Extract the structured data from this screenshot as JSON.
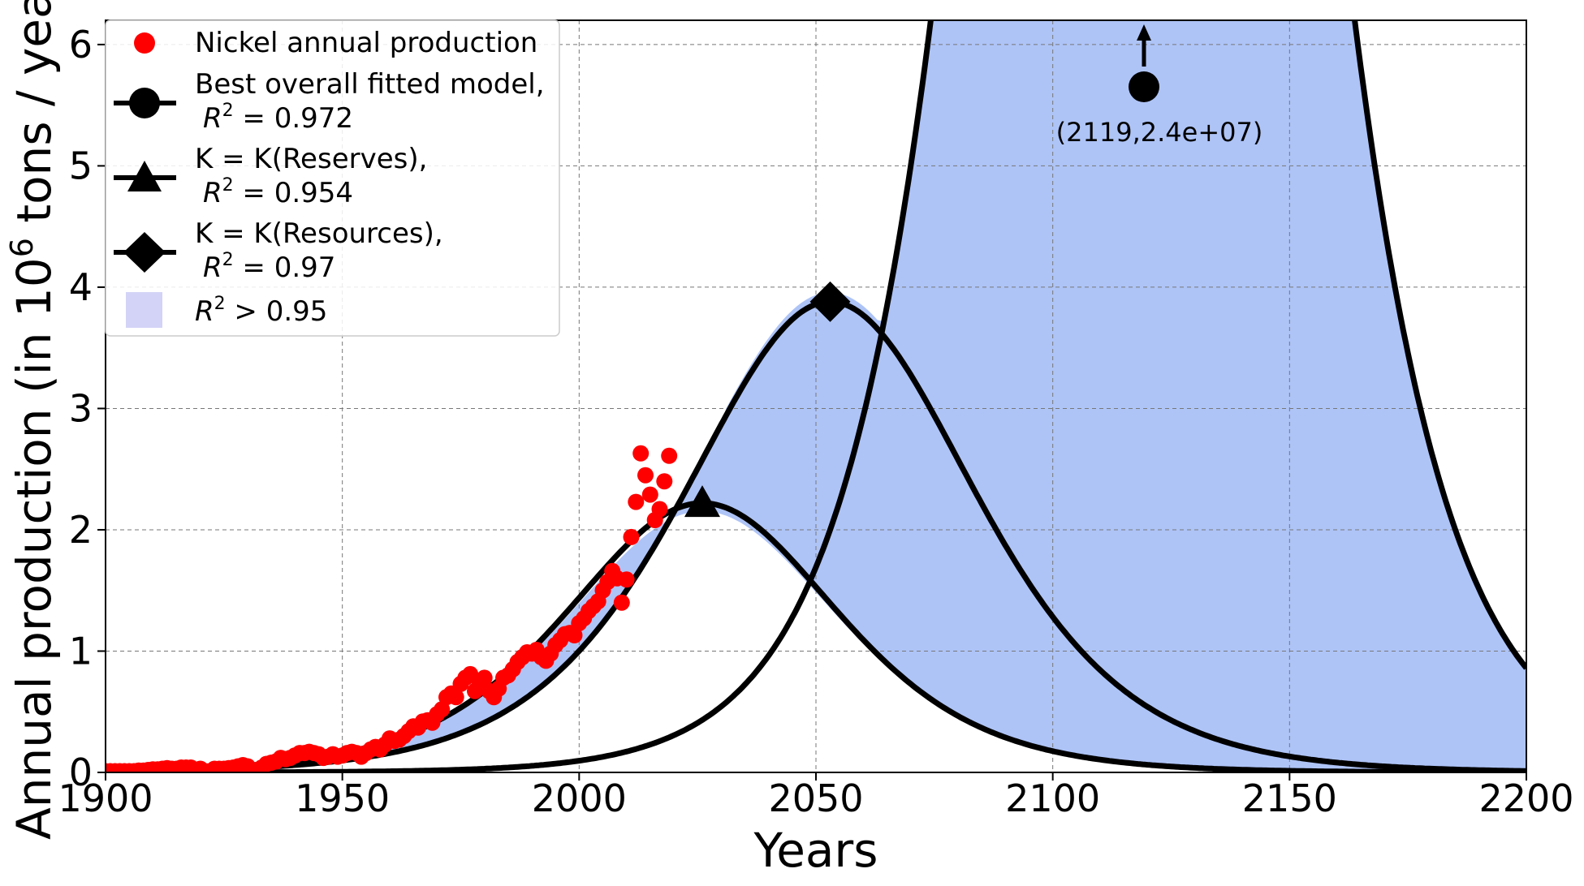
{
  "chart_data": {
    "type": "line",
    "xlabel": "Years",
    "ylabel_main": "Annual production (in 10",
    "ylabel_sup": "6",
    "ylabel_tail": " tons / year)",
    "xlim": [
      1900,
      2200
    ],
    "ylim": [
      0,
      6.2
    ],
    "xticks": [
      1900,
      1950,
      2000,
      2050,
      2100,
      2150,
      2200
    ],
    "yticks": [
      0,
      1,
      2,
      3,
      4,
      5,
      6
    ],
    "grid": true,
    "colors": {
      "data": "#ff0000",
      "models": "#000000",
      "band": "#aec4f7",
      "legend_band": "#d3d3f7"
    },
    "legend": {
      "placement": "top-left",
      "entries": [
        {
          "label": "Nickel annual production",
          "marker": "circle",
          "color": "#ff0000"
        },
        {
          "label": "Best overall fitted model,",
          "label2_a": "R",
          "label2_sup": "2",
          "label2_b": " = 0.972",
          "marker": "circle"
        },
        {
          "label": "K = K(Reserves),",
          "label2_a": "R",
          "label2_sup": "2",
          "label2_b": " = 0.954",
          "marker": "triangle"
        },
        {
          "label": "K = K(Resources),",
          "label2_a": "R",
          "label2_sup": "2",
          "label2_b": " = 0.97",
          "marker": "diamond"
        },
        {
          "label_a": "R",
          "label_sup": "2",
          "label_b": " > 0.95",
          "marker": "band"
        }
      ]
    },
    "series": [
      {
        "name": "Nickel annual production",
        "kind": "scatter",
        "x": [
          1900,
          1901,
          1902,
          1903,
          1904,
          1905,
          1906,
          1907,
          1908,
          1909,
          1910,
          1911,
          1912,
          1913,
          1914,
          1915,
          1916,
          1917,
          1918,
          1919,
          1920,
          1921,
          1922,
          1923,
          1924,
          1925,
          1926,
          1927,
          1928,
          1929,
          1930,
          1931,
          1932,
          1933,
          1934,
          1935,
          1936,
          1937,
          1938,
          1939,
          1940,
          1941,
          1942,
          1943,
          1944,
          1945,
          1946,
          1947,
          1948,
          1949,
          1950,
          1951,
          1952,
          1953,
          1954,
          1955,
          1956,
          1957,
          1958,
          1959,
          1960,
          1961,
          1962,
          1963,
          1964,
          1965,
          1966,
          1967,
          1968,
          1969,
          1970,
          1971,
          1972,
          1973,
          1974,
          1975,
          1976,
          1977,
          1978,
          1979,
          1980,
          1981,
          1982,
          1983,
          1984,
          1985,
          1986,
          1987,
          1988,
          1989,
          1990,
          1991,
          1992,
          1993,
          1994,
          1995,
          1996,
          1997,
          1998,
          1999,
          2000,
          2001,
          2002,
          2003,
          2004,
          2005,
          2006,
          2007,
          2008,
          2009,
          2010,
          2011,
          2012,
          2013,
          2014,
          2015,
          2016,
          2017,
          2018,
          2019
        ],
        "y": [
          0.01,
          0.01,
          0.01,
          0.01,
          0.01,
          0.01,
          0.01,
          0.015,
          0.015,
          0.02,
          0.025,
          0.025,
          0.03,
          0.035,
          0.03,
          0.03,
          0.04,
          0.04,
          0.04,
          0.02,
          0.03,
          0.01,
          0.01,
          0.03,
          0.03,
          0.03,
          0.035,
          0.04,
          0.05,
          0.06,
          0.05,
          0.02,
          0.01,
          0.04,
          0.07,
          0.08,
          0.09,
          0.12,
          0.11,
          0.12,
          0.14,
          0.16,
          0.16,
          0.17,
          0.16,
          0.15,
          0.12,
          0.13,
          0.15,
          0.13,
          0.14,
          0.16,
          0.17,
          0.16,
          0.13,
          0.16,
          0.19,
          0.21,
          0.19,
          0.23,
          0.28,
          0.26,
          0.27,
          0.3,
          0.34,
          0.38,
          0.37,
          0.42,
          0.43,
          0.41,
          0.48,
          0.52,
          0.62,
          0.65,
          0.62,
          0.73,
          0.78,
          0.81,
          0.67,
          0.73,
          0.78,
          0.67,
          0.62,
          0.69,
          0.78,
          0.8,
          0.85,
          0.91,
          0.95,
          0.99,
          0.98,
          1.01,
          0.95,
          0.92,
          0.98,
          1.05,
          1.09,
          1.14,
          1.15,
          1.13,
          1.23,
          1.27,
          1.33,
          1.37,
          1.41,
          1.5,
          1.57,
          1.66,
          1.6,
          1.4,
          1.59,
          1.94,
          2.23,
          2.63,
          2.45,
          2.29,
          2.08,
          2.17,
          2.4,
          2.61
        ]
      },
      {
        "name": "Best overall fitted model, R2 = 0.972",
        "kind": "logistic-peak",
        "peak_year": 2119,
        "peak_value": 24,
        "marker": "circle"
      },
      {
        "name": "K = K(Reserves), R2 = 0.954",
        "kind": "logistic-peak",
        "peak_year": 2026,
        "peak_value": 2.22,
        "marker": "triangle"
      },
      {
        "name": "K = K(Resources), R2 = 0.97",
        "kind": "logistic-peak",
        "peak_year": 2053,
        "peak_value": 3.88,
        "marker": "diamond"
      }
    ],
    "annotation": {
      "text": "(2119,2.4e+07)",
      "x": 2119,
      "note": "off-scale peak of best fitted model"
    }
  }
}
